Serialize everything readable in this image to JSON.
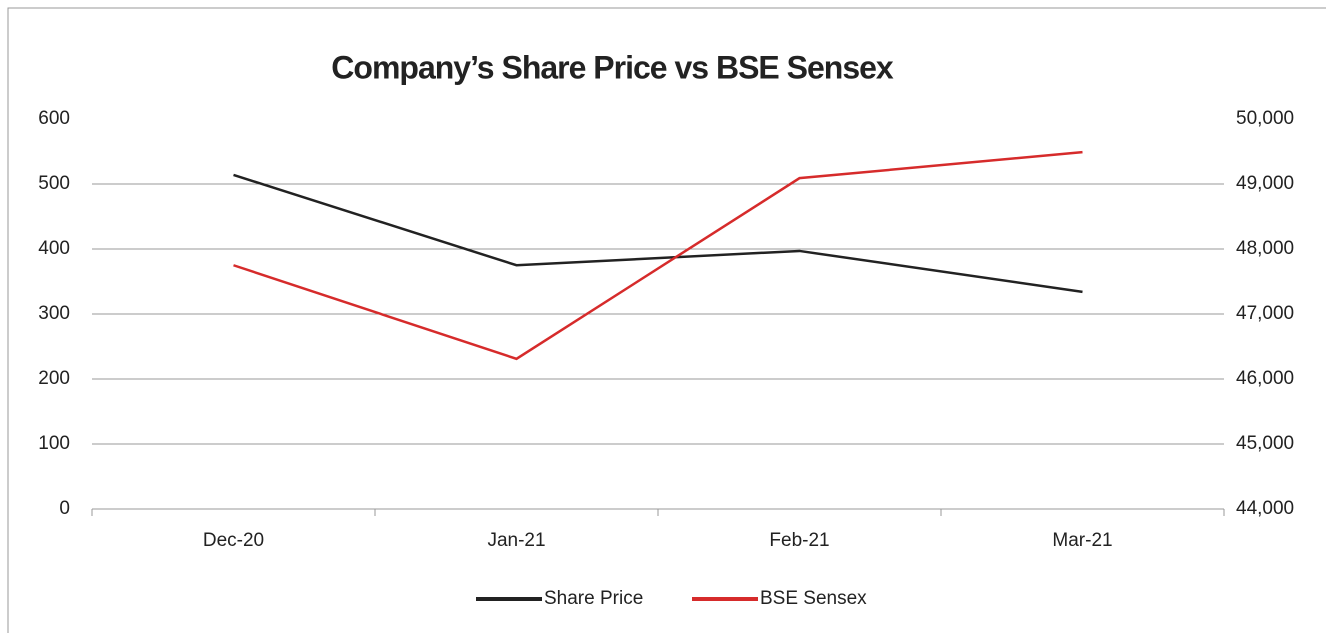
{
  "chart_data": {
    "type": "line",
    "title": "Company’s Share Price vs BSE Sensex",
    "categories": [
      "Dec-20",
      "Jan-21",
      "Feb-21",
      "Mar-21"
    ],
    "series": [
      {
        "name": "Share Price",
        "color": "#222222",
        "values": [
          514,
          375,
          397,
          334
        ]
      },
      {
        "name": "BSE Sensex",
        "color": "#d62b2b",
        "axis": "y2",
        "values": [
          47750,
          46310,
          49090,
          49490
        ]
      }
    ],
    "ylim": [
      0,
      600
    ],
    "yticks": [
      0,
      100,
      200,
      300,
      400,
      500,
      600
    ],
    "y2lim": [
      44000,
      50000
    ],
    "y2ticks": [
      {
        "value": 44000,
        "label": "44,000"
      },
      {
        "value": 45000,
        "label": "45,000"
      },
      {
        "value": 46000,
        "label": "46,000"
      },
      {
        "value": 47000,
        "label": "47,000"
      },
      {
        "value": 48000,
        "label": "48,000"
      },
      {
        "value": 49000,
        "label": "49,000"
      },
      {
        "value": 50000,
        "label": "50,000"
      }
    ],
    "grid": true,
    "legend": "bottom"
  }
}
